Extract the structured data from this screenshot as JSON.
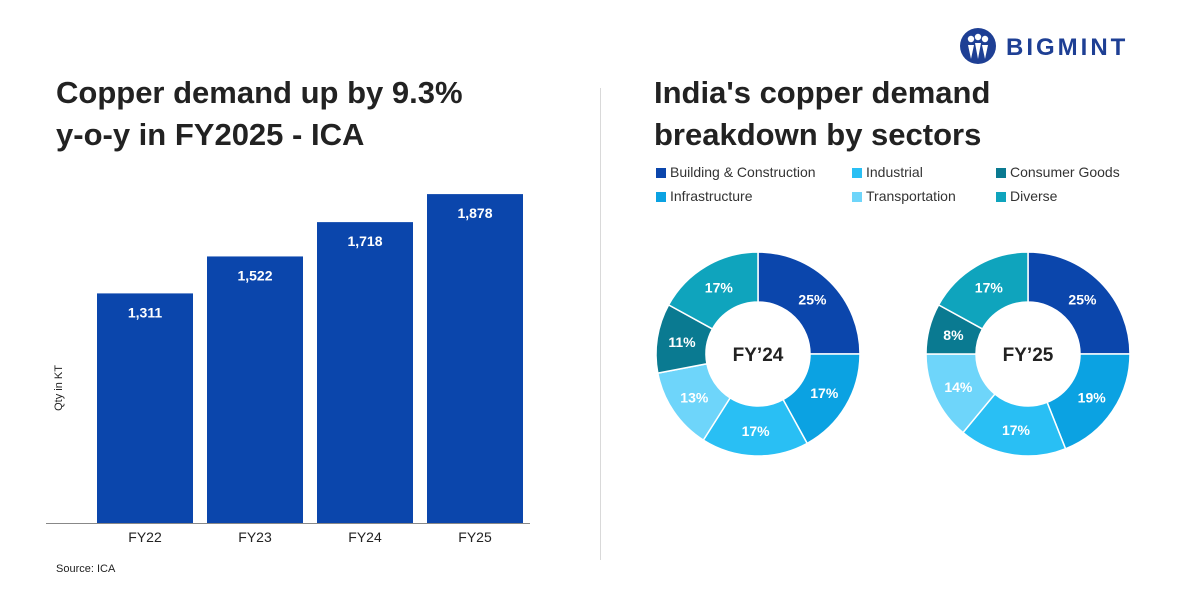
{
  "brand": {
    "name": "BIGMINT",
    "color": "#1e3f94"
  },
  "left_panel": {
    "title_lines": [
      "Copper demand up by 9.3%",
      "y-o-y in FY2025 - ICA"
    ],
    "source": "Source: ICA"
  },
  "right_panel": {
    "title_lines": [
      "India's copper demand",
      "breakdown by sectors"
    ]
  },
  "chart_data": [
    {
      "type": "bar",
      "title": "Copper demand up by 9.3% y-o-y in FY2025 - ICA",
      "categories": [
        "FY22",
        "FY23",
        "FY24",
        "FY25"
      ],
      "values": [
        1311,
        1522,
        1718,
        1878
      ],
      "value_labels": [
        "1,311",
        "1,522",
        "1,718",
        "1,878"
      ],
      "xlabel": "",
      "ylabel": "Qty in KT",
      "ylim": [
        0,
        1890
      ],
      "bar_color": "#0b46ac",
      "grid": false
    },
    {
      "type": "pie",
      "subtype": "donut",
      "center_label": "FY’24",
      "labels": [
        "Building & Construction",
        "Infrastructure",
        "Industrial",
        "Transportation",
        "Consumer Goods",
        "Diverse"
      ],
      "values": [
        25,
        17,
        17,
        13,
        11,
        17
      ],
      "value_labels": [
        "25%",
        "17%",
        "17%",
        "13%",
        "11%",
        "17%"
      ],
      "colors": [
        "#0b46ac",
        "#0ba2e2",
        "#29bff4",
        "#6ed5fa",
        "#0a7a91",
        "#0fa4bd"
      ]
    },
    {
      "type": "pie",
      "subtype": "donut",
      "center_label": "FY’25",
      "labels": [
        "Building & Construction",
        "Infrastructure",
        "Industrial",
        "Transportation",
        "Consumer Goods",
        "Diverse"
      ],
      "values": [
        25,
        19,
        17,
        14,
        8,
        17
      ],
      "value_labels": [
        "25%",
        "19%",
        "17%",
        "14%",
        "8%",
        "17%"
      ],
      "colors": [
        "#0b46ac",
        "#0ba2e2",
        "#29bff4",
        "#6ed5fa",
        "#0a7a91",
        "#0fa4bd"
      ]
    }
  ],
  "legend": {
    "placement": "top",
    "items": [
      {
        "label": "Building & Construction",
        "color": "#0b46ac"
      },
      {
        "label": "Industrial",
        "color": "#29bff4"
      },
      {
        "label": "Consumer Goods",
        "color": "#0a7a91"
      },
      {
        "label": "Infrastructure",
        "color": "#0ba2e2"
      },
      {
        "label": "Transportation",
        "color": "#6ed5fa"
      },
      {
        "label": "Diverse",
        "color": "#0fa4bd"
      }
    ]
  }
}
